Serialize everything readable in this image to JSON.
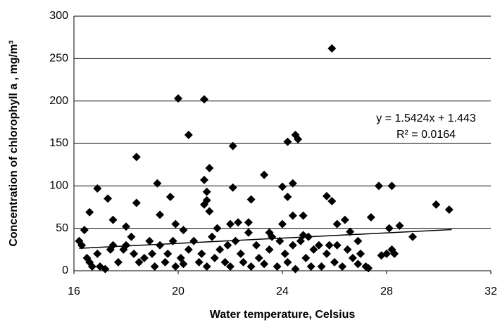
{
  "chart_data": {
    "type": "scatter",
    "x_label": "Water temperature, Celsius",
    "y_label": "Concentration of chlorophyll a , mg/m³",
    "annotations": [
      "y = 1.5424x + 1.443",
      "R² = 0.0164"
    ],
    "xlim": [
      16,
      32
    ],
    "xticks": [
      16,
      20,
      24,
      28,
      32
    ],
    "ylim": [
      0,
      300
    ],
    "yticks": [
      0,
      50,
      100,
      150,
      200,
      250,
      300
    ],
    "grid": true,
    "series": [
      {
        "color": "#000000",
        "x": [
          25.9,
          20,
          21,
          20.4,
          24.5,
          24.6,
          24.2,
          22.1,
          18.4,
          21.2,
          23.3,
          21,
          24.4,
          19.2,
          22.1,
          24,
          27.7,
          28.2,
          16.9,
          21.1,
          24.2,
          19.7,
          25.7,
          17.3,
          21.1,
          22.8,
          18.4,
          21,
          29.9,
          21.2,
          16.6,
          30.4,
          19.3,
          24.4,
          24.8,
          27.4,
          17.5,
          25.9,
          26.1,
          26.4,
          19.9,
          28.5,
          28.1,
          18,
          22,
          22.3,
          22.7,
          24,
          16.4,
          20.2,
          21.5,
          23.5,
          25,
          24.8,
          26.6,
          26.9,
          29,
          16.2,
          16.3,
          16.5,
          16.6,
          16.7,
          16.9,
          17,
          17.2,
          17.4,
          17.5,
          17.7,
          17.9,
          18,
          18.2,
          18.3,
          18.5,
          18.7,
          18.9,
          19,
          19.1,
          19.3,
          19.5,
          19.6,
          19.8,
          19.9,
          20.1,
          20.2,
          20.4,
          20.6,
          20.8,
          20.9,
          21.1,
          21.3,
          21.4,
          21.6,
          21.8,
          21.9,
          22,
          22.2,
          22.4,
          22.5,
          22.7,
          22.8,
          23,
          23.1,
          23.3,
          23.5,
          23.6,
          23.8,
          23.9,
          24.1,
          24.2,
          24.4,
          24.5,
          24.7,
          24.9,
          25.1,
          25.2,
          25.4,
          25.5,
          25.7,
          25.8,
          26,
          26.1,
          26.3,
          26.5,
          26.7,
          26.9,
          27,
          27.2,
          27.3,
          28,
          28.2,
          27.8,
          28.3
        ],
        "values": [
          262,
          203,
          202,
          160,
          160,
          155,
          152,
          147,
          134,
          121,
          113,
          107,
          103,
          103,
          98,
          99,
          100,
          100,
          97,
          93,
          87,
          87,
          88,
          85,
          83,
          84,
          80,
          78,
          78,
          70,
          69,
          72,
          66,
          65,
          65,
          63,
          60,
          82,
          55,
          60,
          55,
          53,
          50,
          52,
          55,
          57,
          57,
          55,
          48,
          48,
          50,
          45,
          40,
          42,
          46,
          35,
          40,
          35,
          30,
          15,
          10,
          5,
          20,
          5,
          2,
          25,
          30,
          10,
          25,
          30,
          40,
          20,
          10,
          15,
          35,
          20,
          5,
          30,
          10,
          20,
          35,
          5,
          15,
          8,
          25,
          35,
          10,
          20,
          5,
          40,
          15,
          25,
          10,
          30,
          5,
          35,
          20,
          10,
          45,
          5,
          30,
          15,
          8,
          25,
          40,
          5,
          35,
          20,
          10,
          30,
          2,
          35,
          15,
          5,
          25,
          30,
          5,
          20,
          30,
          10,
          30,
          5,
          25,
          15,
          8,
          20,
          5,
          3,
          20,
          25,
          18,
          20
        ]
      },
      {
        "type": "line",
        "color": "#000000",
        "x": [
          16.2,
          30.5
        ],
        "values": [
          26.4,
          48.5
        ]
      }
    ]
  }
}
